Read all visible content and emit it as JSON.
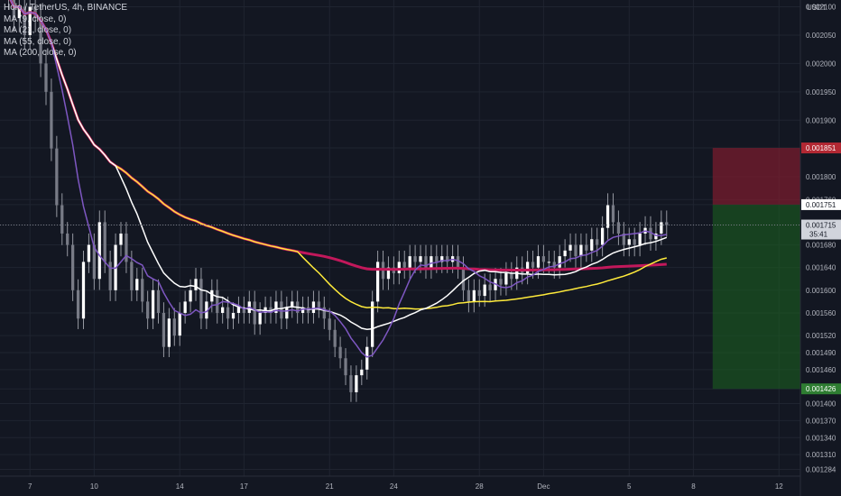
{
  "chart_data": {
    "type": "candlestick",
    "title": "Holo / TetherUS, 4h, BINANCE",
    "indicators": [
      {
        "name": "MA (9, close, 0)",
        "color": "#7e57c2"
      },
      {
        "name": "MA (21, close, 0)",
        "color": "#ffffff"
      },
      {
        "name": "MA (55, close, 0)",
        "color": "#ffeb3b"
      },
      {
        "name": "MA (200, close, 0)",
        "color": "#c2185b"
      }
    ],
    "y_axis": {
      "unit": "USDT",
      "ylim": [
        0.001272,
        0.002112
      ],
      "ticks": [
        "0.002100",
        "0.002050",
        "0.002000",
        "0.001950",
        "0.001900",
        "0.001851",
        "0.001800",
        "0.001760",
        "0.001751",
        "0.001715",
        "0.001680",
        "0.001640",
        "0.001600",
        "0.001560",
        "0.001520",
        "0.001490",
        "0.001460",
        "0.001426",
        "0.001400",
        "0.001370",
        "0.001340",
        "0.001310",
        "0.001284"
      ]
    },
    "x_axis": {
      "ticks": [
        {
          "label": "7",
          "day": 7
        },
        {
          "label": "10",
          "day": 10
        },
        {
          "label": "14",
          "day": 14
        },
        {
          "label": "17",
          "day": 17
        },
        {
          "label": "21",
          "day": 21
        },
        {
          "label": "24",
          "day": 24
        },
        {
          "label": "28",
          "day": 28
        },
        {
          "label": "Dec",
          "day": 31
        },
        {
          "label": "5",
          "day": 35
        },
        {
          "label": "8",
          "day": 38
        },
        {
          "label": "12",
          "day": 42
        }
      ],
      "xlim": [
        5.6,
        43.0
      ]
    },
    "candles": {
      "close": [
        0.00212,
        0.00208,
        0.0021,
        0.00205,
        0.0021,
        0.00208,
        0.002,
        0.00195,
        0.00185,
        0.00175,
        0.0017,
        0.00168,
        0.0016,
        0.00155,
        0.00165,
        0.00168,
        0.00162,
        0.00172,
        0.00165,
        0.0016,
        0.00168,
        0.0017,
        0.00165,
        0.0016,
        0.00162,
        0.00158,
        0.00155,
        0.0016,
        0.00156,
        0.0015,
        0.00155,
        0.00152,
        0.00156,
        0.00158,
        0.0016,
        0.00162,
        0.00155,
        0.00158,
        0.0016,
        0.00156,
        0.00157,
        0.00155,
        0.00156,
        0.00157,
        0.00156,
        0.00158,
        0.00154,
        0.00156,
        0.00157,
        0.00156,
        0.00158,
        0.00155,
        0.00157,
        0.00158,
        0.00156,
        0.00157,
        0.00156,
        0.00158,
        0.00157,
        0.00155,
        0.00153,
        0.0015,
        0.00148,
        0.00145,
        0.00142,
        0.00145,
        0.00146,
        0.0015,
        0.00158,
        0.00165,
        0.00162,
        0.00164,
        0.00163,
        0.00165,
        0.00164,
        0.00166,
        0.00165,
        0.00166,
        0.00164,
        0.00166,
        0.00165,
        0.00166,
        0.00165,
        0.00166,
        0.00164,
        0.0016,
        0.00158,
        0.0016,
        0.00159,
        0.00161,
        0.0016,
        0.00162,
        0.00161,
        0.00163,
        0.00162,
        0.00164,
        0.00163,
        0.00165,
        0.00164,
        0.00166,
        0.00165,
        0.00165,
        0.00164,
        0.00166,
        0.00167,
        0.00168,
        0.00166,
        0.00168,
        0.00167,
        0.00169,
        0.00168,
        0.00171,
        0.00175,
        0.00172,
        0.0017,
        0.00168,
        0.00169,
        0.00168,
        0.0017,
        0.00171,
        0.00169,
        0.0017,
        0.00172,
        0.001715
      ],
      "x_start_day": 6.0,
      "x_step_day": 0.25,
      "color_up": "#ffffff",
      "color_down": "#ffffff"
    },
    "last_price": {
      "value": "0.001715",
      "countdown": "35:41"
    },
    "position": {
      "stop_label": "0.001851",
      "entry_label": "0.001751",
      "target_label": "0.001426",
      "stop_color": "#7f1d2d",
      "target_color": "#1b5e20"
    },
    "ma_styles": {
      "ma9": "#7e57c2",
      "ma21": "#ffffff",
      "ma55": "#ffeb3b",
      "ma200": "#c2185b"
    }
  },
  "legend": {
    "title": "Holo / TetherUS, 4h, BINANCE",
    "ma9": "MA (9, close, 0)",
    "ma21": "MA (21, close, 0)",
    "ma55": "MA (55, close, 0)",
    "ma200": "MA (200, close, 0)"
  }
}
